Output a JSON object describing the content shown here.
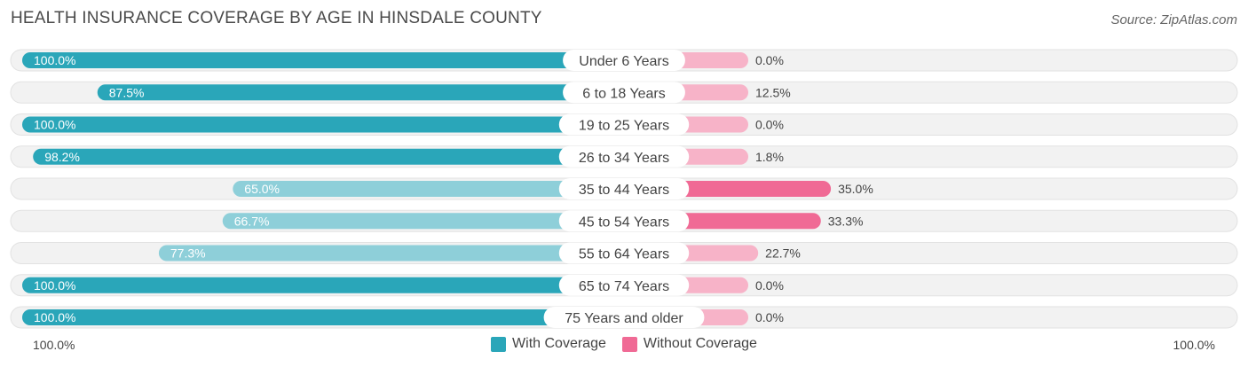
{
  "chart_data": {
    "type": "bar",
    "orientation": "horizontal-diverging",
    "title": "HEALTH INSURANCE COVERAGE BY AGE IN HINSDALE COUNTY",
    "source": "Source: ZipAtlas.com",
    "categories": [
      "Under 6 Years",
      "6 to 18 Years",
      "19 to 25 Years",
      "26 to 34 Years",
      "35 to 44 Years",
      "45 to 54 Years",
      "55 to 64 Years",
      "65 to 74 Years",
      "75 Years and older"
    ],
    "series": [
      {
        "name": "With Coverage",
        "values": [
          100.0,
          87.5,
          100.0,
          98.2,
          65.0,
          66.7,
          77.3,
          100.0,
          100.0
        ],
        "labels": [
          "100.0%",
          "87.5%",
          "100.0%",
          "98.2%",
          "65.0%",
          "66.7%",
          "77.3%",
          "100.0%",
          "100.0%"
        ]
      },
      {
        "name": "Without Coverage",
        "values": [
          0.0,
          12.5,
          0.0,
          1.8,
          35.0,
          33.3,
          22.7,
          0.0,
          0.0
        ],
        "labels": [
          "0.0%",
          "12.5%",
          "0.0%",
          "1.8%",
          "35.0%",
          "33.3%",
          "22.7%",
          "0.0%",
          "0.0%"
        ]
      }
    ],
    "axis_left_label": "100.0%",
    "axis_right_label": "100.0%",
    "xlim": [
      0,
      100
    ]
  },
  "colors": {
    "with_strong": "#2aa6b9",
    "with_light": "#8ecfd9",
    "without_strong": "#f06a95",
    "without_light": "#f7b3c8",
    "track": "#f2f2f2",
    "track_border": "#e2e2e2"
  }
}
